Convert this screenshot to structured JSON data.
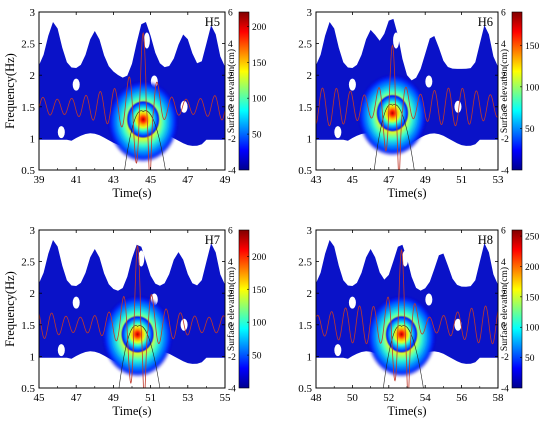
{
  "chart_data": [
    {
      "type": "heatmap",
      "panel_label": "H5",
      "xlabel": "Time(s)",
      "ylabel": "Frequency(Hz)",
      "right_axis_label": "Surface elevation(cm)",
      "xlim": [
        39,
        49
      ],
      "x_ticks": [
        "39",
        "41",
        "43",
        "45",
        "47",
        "49"
      ],
      "ylim": [
        0.5,
        3
      ],
      "y_ticks": [
        "0.5",
        "1",
        "1.5",
        "2",
        "2.5",
        "3"
      ],
      "right_ylim": [
        -4,
        6
      ],
      "right_ticks": [
        "-4",
        "-2",
        "0",
        "2",
        "4",
        "6"
      ],
      "colorbar_ticks": [
        "50",
        "100",
        "150",
        "200"
      ],
      "colorbar_range": [
        0,
        220
      ],
      "peak": {
        "time": 44.6,
        "frequency": 1.3,
        "value": 215
      },
      "wave": {
        "amplitude_cm": 1.2,
        "frequency_hz": 1.3,
        "focus_time": 44.6,
        "peak_cm": 4.8
      }
    },
    {
      "type": "heatmap",
      "panel_label": "H6",
      "xlabel": "Time(s)",
      "ylabel": "",
      "right_axis_label": "Surface elevation(cm)",
      "xlim": [
        43,
        53
      ],
      "x_ticks": [
        "43",
        "45",
        "47",
        "49",
        "51",
        "53"
      ],
      "ylim": [
        0.5,
        3
      ],
      "y_ticks": [
        "0.5",
        "1",
        "1.5",
        "2",
        "2.5",
        "3"
      ],
      "right_ylim": [
        -4,
        6
      ],
      "right_ticks": [
        "-4",
        "-2",
        "0",
        "2",
        "4",
        "6"
      ],
      "colorbar_ticks": [
        "50",
        "100",
        "150"
      ],
      "colorbar_range": [
        0,
        190
      ],
      "peak": {
        "time": 47.2,
        "frequency": 1.4,
        "value": 185
      },
      "wave": {
        "amplitude_cm": 1.2,
        "frequency_hz": 1.3,
        "focus_time": 47.2,
        "peak_cm": 4.6
      }
    },
    {
      "type": "heatmap",
      "panel_label": "H7",
      "xlabel": "Time(s)",
      "ylabel": "Frequency(Hz)",
      "right_axis_label": "Surface elevation(cm)",
      "xlim": [
        45,
        55
      ],
      "x_ticks": [
        "45",
        "47",
        "49",
        "51",
        "53",
        "55"
      ],
      "ylim": [
        0.5,
        3
      ],
      "y_ticks": [
        "0.5",
        "1",
        "1.5",
        "2",
        "2.5",
        "3"
      ],
      "right_ylim": [
        -4,
        6
      ],
      "right_ticks": [
        "-4",
        "-2",
        "0",
        "2",
        "4",
        "6"
      ],
      "colorbar_ticks": [
        "50",
        "100",
        "150",
        "200"
      ],
      "colorbar_range": [
        0,
        240
      ],
      "peak": {
        "time": 50.3,
        "frequency": 1.35,
        "value": 235
      },
      "wave": {
        "amplitude_cm": 1.2,
        "frequency_hz": 1.3,
        "focus_time": 50.3,
        "peak_cm": 5.0
      }
    },
    {
      "type": "heatmap",
      "panel_label": "H8",
      "xlabel": "Time(s)",
      "ylabel": "",
      "right_axis_label": "Surface elevation(cm)",
      "xlim": [
        48,
        58
      ],
      "x_ticks": [
        "48",
        "50",
        "52",
        "54",
        "56",
        "58"
      ],
      "ylim": [
        0.5,
        3
      ],
      "y_ticks": [
        "0.5",
        "1",
        "1.5",
        "2",
        "2.5",
        "3"
      ],
      "right_ylim": [
        -4,
        6
      ],
      "right_ticks": [
        "-4",
        "-2",
        "0",
        "2",
        "4",
        "6"
      ],
      "colorbar_ticks": [
        "50",
        "100",
        "150",
        "200",
        "250"
      ],
      "colorbar_range": [
        0,
        260
      ],
      "peak": {
        "time": 52.7,
        "frequency": 1.35,
        "value": 255
      },
      "wave": {
        "amplitude_cm": 1.2,
        "frequency_hz": 1.3,
        "focus_time": 52.7,
        "peak_cm": 5.2
      }
    }
  ]
}
